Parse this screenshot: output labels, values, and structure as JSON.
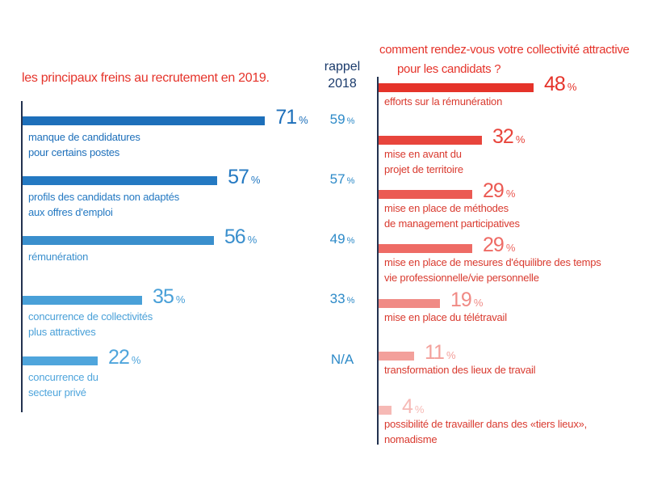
{
  "left_title": "les principaux freins au recrutement en 2019.",
  "right_title_line1": "comment rendez-vous votre collectivité attractive",
  "right_title_line2": "pour les candidats ?",
  "recall_label_line1": "rappel",
  "recall_label_line2": "2018",
  "percent_sign": "%",
  "colors": {
    "title": "#e5332a",
    "axis": "#22314f",
    "left_bars": [
      "#1d6fba",
      "#2479c2",
      "#3a8fcd",
      "#49a0d8",
      "#4fa5dc"
    ],
    "right_bars": [
      "#e5332a",
      "#e8453c",
      "#eb5a53",
      "#ee6b65",
      "#f08a85",
      "#f3a09b",
      "#f6b9b5"
    ]
  },
  "chart_data": [
    {
      "type": "bar",
      "orientation": "horizontal",
      "title": "les principaux freins au recrutement en 2019.",
      "unit": "%",
      "categories": [
        "manque de candidatures pour certains postes",
        "profils des candidats non adaptés aux offres d'emploi",
        "rémunération",
        "concurrence de collectivités plus attractives",
        "concurrence du secteur privé"
      ],
      "label_lines": [
        [
          "manque de candidatures",
          "pour certains postes"
        ],
        [
          "profils des candidats non adaptés",
          "aux offres d'emploi"
        ],
        [
          "rémunération"
        ],
        [
          "concurrence de collectivités",
          "plus attractives"
        ],
        [
          "concurrence du",
          "secteur privé"
        ]
      ],
      "values": [
        71,
        57,
        56,
        35,
        22
      ],
      "recall_2018": [
        "59",
        "57",
        "49",
        "33",
        "N/A"
      ]
    },
    {
      "type": "bar",
      "orientation": "horizontal",
      "title": "comment rendez-vous votre collectivité attractive pour les candidats ?",
      "unit": "%",
      "categories": [
        "efforts sur la rémunération",
        "mise en avant du projet de territoire",
        "mise en place de méthodes de management participatives",
        "mise en place de mesures d'équilibre des temps vie professionnelle/vie personnelle",
        "mise en place du télétravail",
        "transformation des lieux de travail",
        "possibilité de travailler dans des «tiers lieux», nomadisme"
      ],
      "label_lines": [
        [
          "efforts sur la rémunération"
        ],
        [
          "mise en avant du",
          "projet de territoire"
        ],
        [
          "mise en place de méthodes",
          "de management participatives"
        ],
        [
          "mise en place de mesures d'équilibre des temps",
          "vie professionnelle/vie personnelle"
        ],
        [
          "mise en place du télétravail"
        ],
        [
          "transformation des lieux de travail"
        ],
        [
          "possibilité de travailler dans des «tiers lieux»,",
          "nomadisme"
        ]
      ],
      "values": [
        48,
        32,
        29,
        29,
        19,
        11,
        4
      ]
    }
  ]
}
